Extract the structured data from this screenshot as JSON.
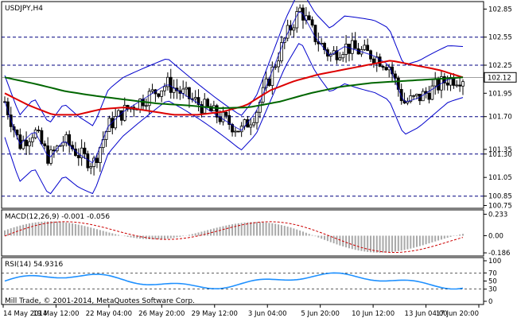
{
  "chart_data": {
    "type": "line",
    "title": "USDJPY,H4",
    "xlabel": "",
    "ylabel": "",
    "x_ticks": [
      "14 May 2014",
      "19 May 12:00",
      "22 May 04:00",
      "26 May 20:00",
      "29 May 12:00",
      "3 Jun 04:00",
      "5 Jun 20:00",
      "10 Jun 12:00",
      "13 Jun 04:00",
      "17 Jun 20:00"
    ],
    "price_axis": {
      "ylim": [
        100.72,
        102.93
      ],
      "ticks": [
        {
          "value": 102.85,
          "label": "102.85"
        },
        {
          "value": 102.55,
          "label": "102.55"
        },
        {
          "value": 102.25,
          "label": "102.25"
        },
        {
          "value": 101.95,
          "label": "101.95"
        },
        {
          "value": 101.7,
          "label": "101.70"
        },
        {
          "value": 101.35,
          "label": "101.35"
        },
        {
          "value": 101.3,
          "label": "101.30"
        },
        {
          "value": 101.05,
          "label": "101.05"
        },
        {
          "value": 100.85,
          "label": "100.85"
        },
        {
          "value": 100.75,
          "label": "100.75"
        }
      ],
      "current_price": {
        "value": 102.12,
        "label": "102.12"
      },
      "levels": [
        102.55,
        102.25,
        101.7,
        101.3,
        100.85
      ],
      "grid": false
    },
    "series": [
      {
        "name": "",
        "values": [
          101.86,
          101.4,
          101.55,
          101.25,
          101.45,
          101.3,
          101.2,
          101.6,
          101.75,
          101.85,
          101.95,
          102.05,
          101.95,
          101.85,
          101.75,
          101.65,
          101.55,
          101.75,
          102.15,
          102.55,
          102.85,
          102.55,
          102.35,
          102.45,
          102.4,
          102.35,
          102.25,
          101.85,
          101.9,
          102.0,
          102.1,
          102.12
        ]
      },
      {
        "name": "",
        "values": [
          101.95,
          101.82,
          101.72,
          101.72,
          101.78,
          101.8,
          101.76,
          101.72,
          101.72,
          101.75,
          101.82,
          101.98,
          102.08,
          102.15,
          102.2,
          102.25,
          102.3,
          102.25,
          102.2,
          102.12
        ]
      },
      {
        "name": "",
        "values": [
          102.12,
          102.05,
          101.97,
          101.92,
          101.88,
          101.84,
          101.82,
          101.79,
          101.8,
          101.86,
          101.95,
          102.02,
          102.06,
          102.08,
          102.1,
          102.12
        ]
      }
    ],
    "panels": [
      {
        "name": "MACD(12,26,9) -0.001 -0.056",
        "ticks": [
          "0.233",
          "0.00",
          "-0.186"
        ]
      },
      {
        "name": "RSI(14) 54.9316",
        "ticks": [
          "100",
          "70",
          "50",
          "30",
          "0"
        ]
      }
    ]
  },
  "footer": {
    "copyright": "Mill Trade, © 2001-2014, MetaQuotes Software Corp."
  },
  "colors": {
    "ma_fast": "#dd0000",
    "ma_slow": "#006600",
    "bands": "#0000cc",
    "rsi": "#1e90ff",
    "macd_hist": "#a9a9a9",
    "macd_signal": "#cc0000",
    "levels": "#000080"
  }
}
